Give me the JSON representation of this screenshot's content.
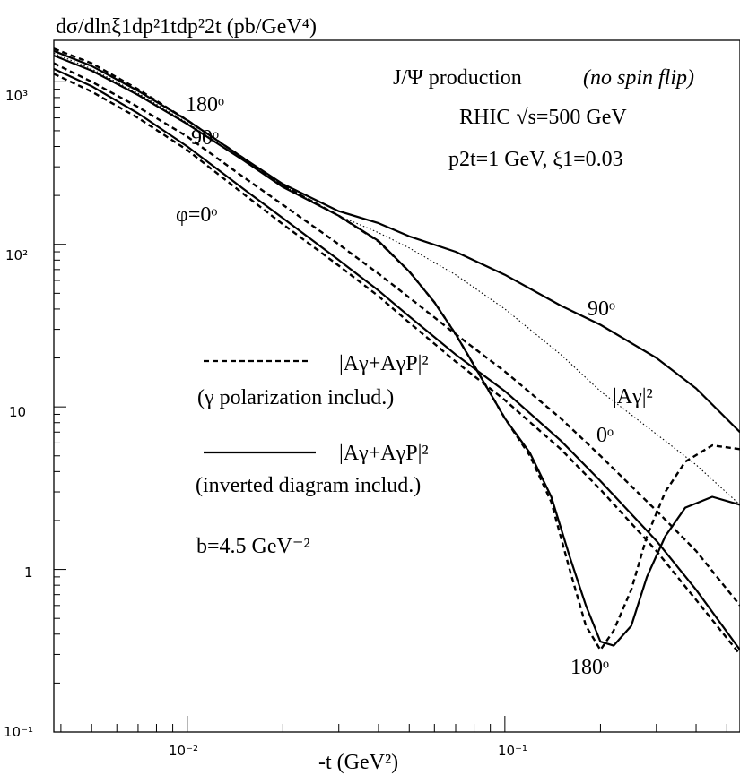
{
  "chart_data": {
    "type": "line",
    "title": "dσ/dlnξ1dp²1tdp²2t (pb/GeV⁴)",
    "xlabel": "-t (GeV²)",
    "ylabel": "",
    "x_scale": "log",
    "y_scale": "log",
    "xlim": [
      0.0038,
      0.55
    ],
    "ylim": [
      0.1,
      1800
    ],
    "x_tick_labels": [
      {
        "value": 0.01,
        "label": "10⁻²"
      },
      {
        "value": 0.1,
        "label": "10⁻¹"
      }
    ],
    "y_tick_labels": [
      {
        "value": 0.1,
        "label": "10⁻¹"
      },
      {
        "value": 1,
        "label": "1"
      },
      {
        "value": 10,
        "label": "10"
      },
      {
        "value": 100,
        "label": "10²"
      },
      {
        "value": 1000,
        "label": "10³"
      }
    ],
    "annotations": {
      "process": "J/Ψ production",
      "process_note": "(no spin flip)",
      "energy": "RHIC  √s=500 GeV",
      "kinematics": "p2t=1 GeV,   ξ1=0.03",
      "legend_dashed_formula": "|Aγ+AγP|²",
      "legend_dashed_note": "(γ  polarization includ.)",
      "legend_solid_formula": "|Aγ+AγP|²",
      "legend_solid_note": "(inverted diagram includ.)",
      "slope": "b=4.5 GeV⁻²",
      "label_180_top": "180ᵒ",
      "label_90_top": "90ᵒ",
      "label_phi0": "φ=0ᵒ",
      "label_90_right": "90ᵒ",
      "label_0_right": "0ᵒ",
      "label_Agamma": "|Aγ|²",
      "label_180_bottom": "180ᵒ"
    },
    "series": [
      {
        "style": "dotted",
        "x": [
          0.0038,
          0.005,
          0.007,
          0.01,
          0.015,
          0.02,
          0.03,
          0.04,
          0.05,
          0.07,
          0.1,
          0.15,
          0.2,
          0.3,
          0.4,
          0.55
        ],
        "y": [
          1500,
          1200,
          850,
          560,
          330,
          230,
          150,
          118,
          95,
          65,
          40,
          21,
          12.5,
          6.8,
          4.4,
          2.5
        ]
      },
      {
        "style": "solid",
        "x": [
          0.0038,
          0.005,
          0.007,
          0.01,
          0.015,
          0.02,
          0.03,
          0.04,
          0.05,
          0.07,
          0.1,
          0.15,
          0.2,
          0.3,
          0.4,
          0.55
        ],
        "y": [
          1550,
          1250,
          880,
          580,
          340,
          235,
          160,
          135,
          112,
          90,
          65,
          42,
          32,
          20,
          13,
          7
        ]
      },
      {
        "style": "solid",
        "x": [
          0.0038,
          0.005,
          0.007,
          0.01,
          0.015,
          0.02,
          0.03,
          0.04,
          0.05,
          0.06,
          0.07,
          0.08,
          0.1,
          0.12,
          0.14,
          0.16,
          0.18,
          0.2,
          0.22,
          0.25,
          0.28,
          0.32,
          0.37,
          0.45,
          0.55
        ],
        "y": [
          1450,
          1170,
          830,
          550,
          330,
          225,
          150,
          105,
          68,
          44,
          28,
          18,
          8.5,
          5.2,
          2.8,
          1.2,
          0.6,
          0.36,
          0.34,
          0.45,
          0.9,
          1.6,
          2.4,
          2.8,
          2.5
        ]
      },
      {
        "style": "dashed",
        "x": [
          0.0038,
          0.005,
          0.007,
          0.01,
          0.015,
          0.02,
          0.03,
          0.04,
          0.05,
          0.06,
          0.07,
          0.08,
          0.1,
          0.12,
          0.14,
          0.16,
          0.18,
          0.2,
          0.22,
          0.25,
          0.28,
          0.32,
          0.37,
          0.45,
          0.55
        ],
        "y": [
          1600,
          1300,
          900,
          580,
          340,
          230,
          150,
          104,
          68,
          44,
          28,
          18,
          8.5,
          5.0,
          2.6,
          1.0,
          0.45,
          0.32,
          0.42,
          0.75,
          1.6,
          3.0,
          4.6,
          5.8,
          5.5
        ]
      },
      {
        "style": "solid",
        "x": [
          0.0038,
          0.005,
          0.007,
          0.01,
          0.015,
          0.02,
          0.03,
          0.04,
          0.05,
          0.07,
          0.1,
          0.15,
          0.2,
          0.3,
          0.4,
          0.55
        ],
        "y": [
          1200,
          940,
          640,
          400,
          220,
          145,
          80,
          52,
          36,
          21,
          12.5,
          6.2,
          3.5,
          1.5,
          0.75,
          0.32
        ]
      },
      {
        "style": "dashed",
        "x": [
          0.0038,
          0.005,
          0.007,
          0.01,
          0.015,
          0.02,
          0.03,
          0.04,
          0.05,
          0.07,
          0.1,
          0.15,
          0.2,
          0.3,
          0.4,
          0.55
        ],
        "y": [
          1300,
          1000,
          700,
          460,
          260,
          175,
          100,
          66,
          47,
          28,
          16.5,
          8.5,
          5.0,
          2.3,
          1.3,
          0.6
        ]
      },
      {
        "style": "dashed",
        "x": [
          0.0038,
          0.005,
          0.007,
          0.01,
          0.015,
          0.02,
          0.03,
          0.04,
          0.05,
          0.07,
          0.1,
          0.15,
          0.2,
          0.3,
          0.4,
          0.55
        ],
        "y": [
          1120,
          870,
          600,
          380,
          205,
          133,
          74,
          48,
          33,
          19,
          11,
          5.5,
          3.1,
          1.3,
          0.65,
          0.3
        ]
      }
    ]
  }
}
